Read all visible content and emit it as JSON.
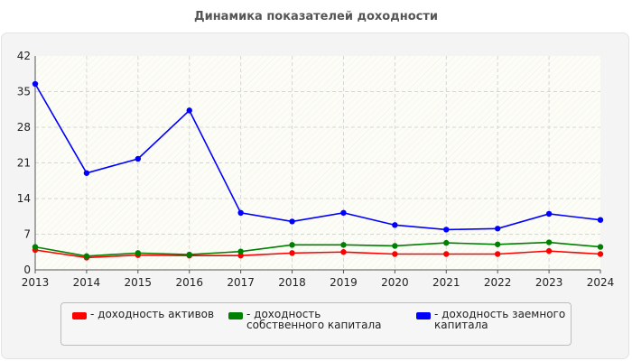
{
  "chart_data": {
    "type": "line",
    "title": "Динамика показателей доходности",
    "x": [
      "2013",
      "2014",
      "2015",
      "2016",
      "2017",
      "2018",
      "2019",
      "2020",
      "2021",
      "2022",
      "2023",
      "2024"
    ],
    "ylim": [
      0,
      42
    ],
    "yticks": [
      0,
      7,
      14,
      21,
      28,
      35,
      42
    ],
    "grid": true,
    "legend_position": "bottom",
    "series": [
      {
        "name": "- доходность активов",
        "color": "#ff0000",
        "values": [
          3.9,
          2.4,
          2.9,
          2.8,
          2.8,
          3.3,
          3.5,
          3.1,
          3.1,
          3.1,
          3.7,
          3.1
        ]
      },
      {
        "name": "- доходность собственного капитала",
        "color": "#008000",
        "values": [
          4.5,
          2.7,
          3.3,
          3.0,
          3.6,
          4.9,
          4.9,
          4.7,
          5.3,
          5.0,
          5.4,
          4.5
        ]
      },
      {
        "name": "- доходность заемного капитала",
        "color": "#0000ff",
        "values": [
          36.5,
          19.0,
          21.8,
          31.3,
          11.2,
          9.5,
          11.2,
          8.8,
          7.9,
          8.1,
          11.0,
          9.8
        ]
      }
    ]
  }
}
